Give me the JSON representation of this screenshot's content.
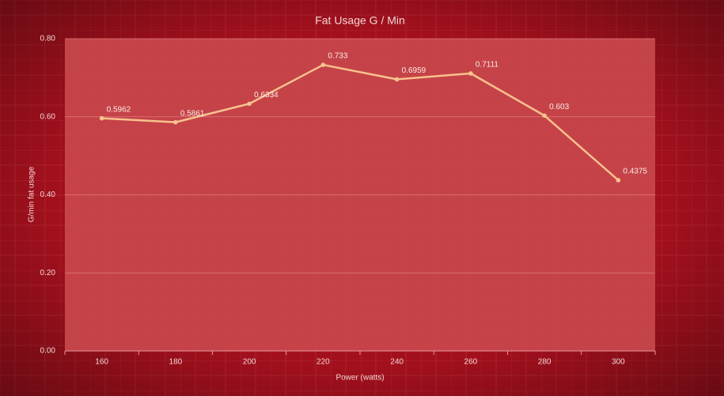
{
  "chart_data": {
    "type": "line",
    "title": "Fat Usage G / Min",
    "x_label": "Power (watts)",
    "y_label": "G/min fat usage",
    "categories": [
      "160",
      "180",
      "200",
      "220",
      "240",
      "260",
      "280",
      "300"
    ],
    "values": [
      0.5962,
      0.5861,
      0.6334,
      0.733,
      0.6959,
      0.7111,
      0.603,
      0.4375
    ],
    "color": "#f7c28e",
    "ylim": [
      0,
      0.8
    ],
    "yticks": [
      {
        "value": 0,
        "label": "0.00"
      },
      {
        "value": 0.2,
        "label": "0.20"
      },
      {
        "value": 0.4,
        "label": "0.40"
      },
      {
        "value": 0.6,
        "label": "0.60"
      },
      {
        "value": 0.8,
        "label": "0.80"
      }
    ],
    "grid": true
  }
}
